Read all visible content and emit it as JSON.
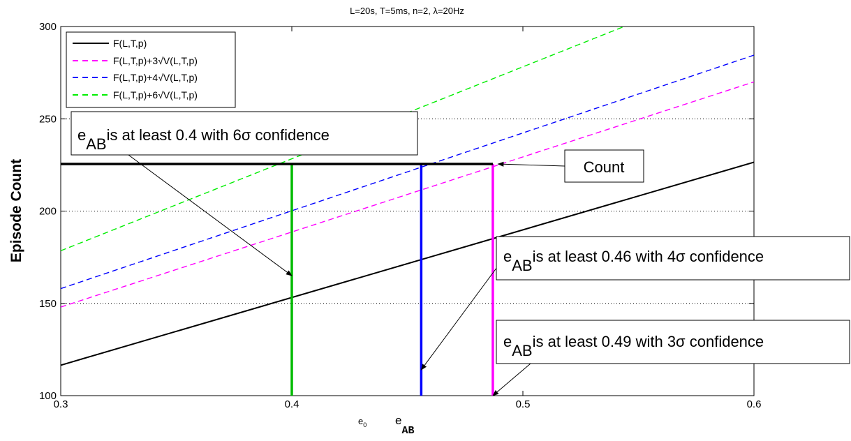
{
  "chart_data": {
    "type": "line",
    "title": "L=20s, T=5ms, n=2, λ=20Hz",
    "ylabel": "Episode Count",
    "xlim": [
      0.3,
      0.6
    ],
    "ylim": [
      100,
      300
    ],
    "x_ticks": [
      "0.3",
      "0.4",
      "0.5",
      "0.6"
    ],
    "y_ticks": [
      "100",
      "150",
      "200",
      "250",
      "300"
    ],
    "grid": "horizontal dotted",
    "legend_position": "top-left",
    "x": [
      0.3,
      0.6
    ],
    "series": [
      {
        "name": "F(L,T,p)",
        "color": "#000000",
        "dash": "solid",
        "values": [
          116.5,
          226.5
        ]
      },
      {
        "name": "F(L,T,p)+3√V(L,T,p)",
        "color": "#ff00ff",
        "dash": "dashed",
        "values": [
          148,
          270
        ]
      },
      {
        "name": "F(L,T,p)+4√V(L,T,p)",
        "color": "#0000ff",
        "dash": "dashed",
        "values": [
          158,
          284.5
        ]
      },
      {
        "name": "F(L,T,p)+6√V(L,T,p)",
        "color": "#00ee00",
        "dash": "dashed",
        "values": [
          178.5,
          328
        ]
      }
    ],
    "count_line": {
      "y": 225.5,
      "x": [
        0.3,
        0.487
      ]
    },
    "vertical_markers": [
      {
        "x": 0.4,
        "y_top": 225.5,
        "color": "#00bb00"
      },
      {
        "x": 0.456,
        "y_top": 225.5,
        "color": "#0000ff"
      },
      {
        "x": 0.487,
        "y_top": 225.5,
        "color": "#ff00ff"
      }
    ],
    "x_annotations": [
      {
        "main": "e",
        "sub": "0",
        "x": 0.3
      },
      {
        "main": "e",
        "sub": "AB",
        "x": 0.3
      }
    ],
    "annotations": [
      {
        "main": "e",
        "sub": "AB",
        "rest": "is at least 0.4 with 6σ confidence",
        "target": {
          "x": 0.4,
          "y": 165
        }
      },
      {
        "main": "Count",
        "target": {
          "x": 0.488,
          "y": 225.5
        }
      },
      {
        "main": "e",
        "sub": "AB",
        "rest": "is at least 0.46 with 4σ confidence",
        "target": {
          "x": 0.456,
          "y": 114
        }
      },
      {
        "main": "e",
        "sub": "AB",
        "rest": "is at least 0.49 with 3σ confidence",
        "target": {
          "x": 0.487,
          "y": 100
        }
      }
    ]
  }
}
